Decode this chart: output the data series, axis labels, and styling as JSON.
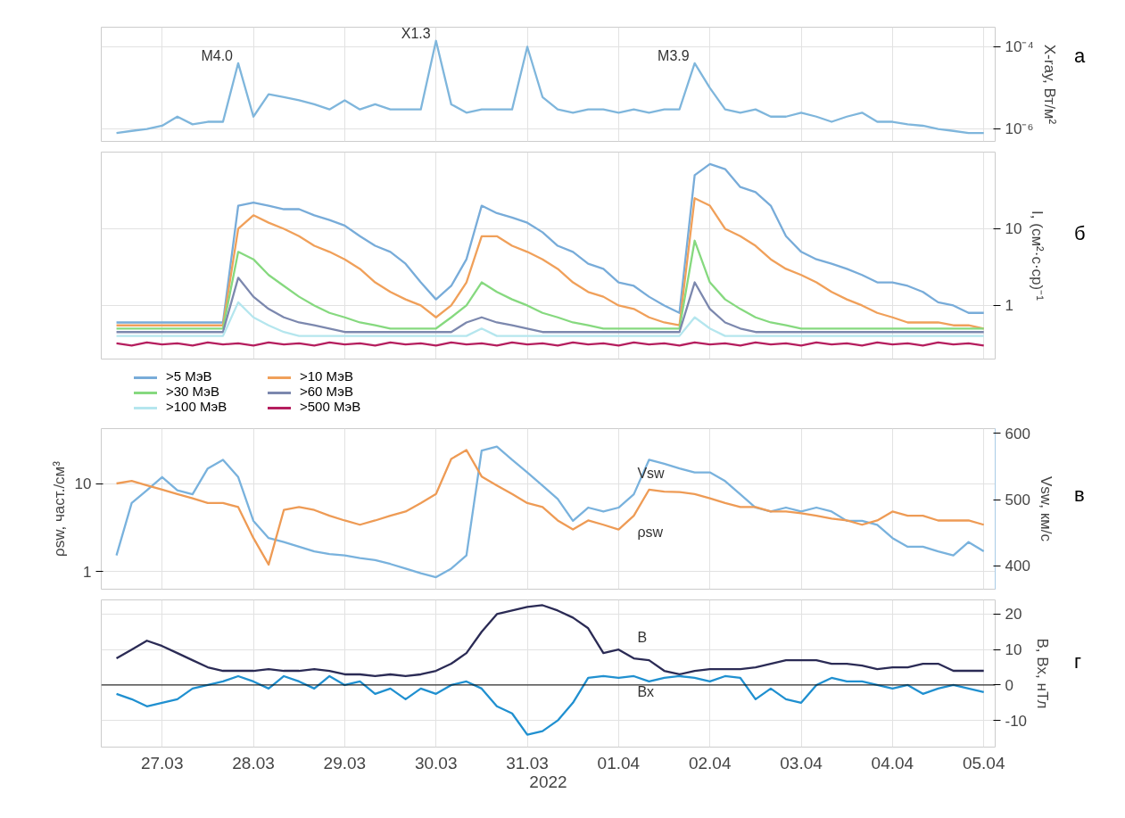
{
  "chart_data": [
    {
      "type": "line",
      "ylabel": "X-ray, Вт/м²",
      "log": true,
      "grid": true,
      "tick_labels": "y",
      "xlim": [
        "2022-03-26T20:00",
        "2022-04-05T15:00"
      ],
      "xticks": [
        "2022-03-27T12:00",
        "2022-03-28T12:00",
        "2022-03-29T12:00",
        "2022-03-30T12:00",
        "2022-03-31T12:00",
        "2022-04-01T12:00",
        "2022-04-02T12:00",
        "2022-04-03T12:00",
        "2022-04-04T12:00",
        "2022-04-05T12:00"
      ],
      "ylim": [
        5e-07,
        0.0003
      ],
      "yticks": [
        {
          "value": 1e-06,
          "label": "10⁻⁶"
        },
        {
          "value": 0.0001,
          "label": "10⁻⁴"
        }
      ],
      "x": [
        "2022-03-27T00:00",
        "2022-03-27T04:00",
        "2022-03-27T08:00",
        "2022-03-27T12:00",
        "2022-03-27T16:00",
        "2022-03-27T20:00",
        "2022-03-28T00:00",
        "2022-03-28T04:00",
        "2022-03-28T08:00",
        "2022-03-28T12:00",
        "2022-03-28T16:00",
        "2022-03-28T20:00",
        "2022-03-29T00:00",
        "2022-03-29T04:00",
        "2022-03-29T08:00",
        "2022-03-29T12:00",
        "2022-03-29T16:00",
        "2022-03-29T20:00",
        "2022-03-30T00:00",
        "2022-03-30T04:00",
        "2022-03-30T08:00",
        "2022-03-30T12:00",
        "2022-03-30T16:00",
        "2022-03-30T20:00",
        "2022-03-31T00:00",
        "2022-03-31T04:00",
        "2022-03-31T08:00",
        "2022-03-31T12:00",
        "2022-03-31T16:00",
        "2022-03-31T20:00",
        "2022-04-01T00:00",
        "2022-04-01T04:00",
        "2022-04-01T08:00",
        "2022-04-01T12:00",
        "2022-04-01T16:00",
        "2022-04-01T20:00",
        "2022-04-02T00:00",
        "2022-04-02T04:00",
        "2022-04-02T08:00",
        "2022-04-02T12:00",
        "2022-04-02T16:00",
        "2022-04-02T20:00",
        "2022-04-03T00:00",
        "2022-04-03T04:00",
        "2022-04-03T08:00",
        "2022-04-03T12:00",
        "2022-04-03T16:00",
        "2022-04-03T20:00",
        "2022-04-04T00:00",
        "2022-04-04T04:00",
        "2022-04-04T08:00",
        "2022-04-04T12:00",
        "2022-04-04T16:00",
        "2022-04-04T20:00",
        "2022-04-05T00:00",
        "2022-04-05T04:00",
        "2022-04-05T08:00",
        "2022-04-05T12:00"
      ],
      "series": [
        {
          "color": "#7fb6dc",
          "values": [
            8e-07,
            9e-07,
            1e-06,
            1.2e-06,
            2e-06,
            1.3e-06,
            1.5e-06,
            1.5e-06,
            4e-05,
            2e-06,
            7e-06,
            6e-06,
            5e-06,
            4e-06,
            3e-06,
            5e-06,
            3e-06,
            4e-06,
            3e-06,
            3e-06,
            3e-06,
            0.00014,
            4e-06,
            2.5e-06,
            3e-06,
            3e-06,
            3e-06,
            0.0001,
            6e-06,
            3e-06,
            2.5e-06,
            3e-06,
            3e-06,
            2.5e-06,
            3e-06,
            2.5e-06,
            3e-06,
            3e-06,
            4e-05,
            1e-05,
            3e-06,
            2.5e-06,
            3e-06,
            2e-06,
            2e-06,
            2.5e-06,
            2e-06,
            1.5e-06,
            2e-06,
            2.5e-06,
            1.5e-06,
            1.5e-06,
            1.3e-06,
            1.2e-06,
            1e-06,
            9e-07,
            8e-07,
            8e-07
          ]
        }
      ],
      "annotations": [
        {
          "text": "M4.0",
          "x": "2022-03-28T08:00",
          "y": 4e-05
        },
        {
          "text": "X1.3",
          "x": "2022-03-30T12:00",
          "y": 0.00014
        },
        {
          "text": "M3.9",
          "x": "2022-04-02T08:00",
          "y": 4e-05
        },
        "а"
      ]
    },
    {
      "type": "line",
      "ylabel": "I, (см²·с·ср)⁻¹",
      "log": true,
      "grid": true,
      "tick_labels": "y",
      "legend": "bottom",
      "xlim": [
        "2022-03-26T20:00",
        "2022-04-05T15:00"
      ],
      "xticks": [
        "2022-03-27T12:00",
        "2022-03-28T12:00",
        "2022-03-29T12:00",
        "2022-03-30T12:00",
        "2022-03-31T12:00",
        "2022-04-01T12:00",
        "2022-04-02T12:00",
        "2022-04-03T12:00",
        "2022-04-04T12:00",
        "2022-04-05T12:00"
      ],
      "ylim": [
        0.2,
        100
      ],
      "yticks": [
        1,
        10
      ],
      "x": [
        "2022-03-27T00:00",
        "2022-03-27T04:00",
        "2022-03-27T08:00",
        "2022-03-27T12:00",
        "2022-03-27T16:00",
        "2022-03-27T20:00",
        "2022-03-28T00:00",
        "2022-03-28T04:00",
        "2022-03-28T08:00",
        "2022-03-28T12:00",
        "2022-03-28T16:00",
        "2022-03-28T20:00",
        "2022-03-29T00:00",
        "2022-03-29T04:00",
        "2022-03-29T08:00",
        "2022-03-29T12:00",
        "2022-03-29T16:00",
        "2022-03-29T20:00",
        "2022-03-30T00:00",
        "2022-03-30T04:00",
        "2022-03-30T08:00",
        "2022-03-30T12:00",
        "2022-03-30T16:00",
        "2022-03-30T20:00",
        "2022-03-31T00:00",
        "2022-03-31T04:00",
        "2022-03-31T08:00",
        "2022-03-31T12:00",
        "2022-03-31T16:00",
        "2022-03-31T20:00",
        "2022-04-01T00:00",
        "2022-04-01T04:00",
        "2022-04-01T08:00",
        "2022-04-01T12:00",
        "2022-04-01T16:00",
        "2022-04-01T20:00",
        "2022-04-02T00:00",
        "2022-04-02T04:00",
        "2022-04-02T08:00",
        "2022-04-02T12:00",
        "2022-04-02T16:00",
        "2022-04-02T20:00",
        "2022-04-03T00:00",
        "2022-04-03T04:00",
        "2022-04-03T08:00",
        "2022-04-03T12:00",
        "2022-04-03T16:00",
        "2022-04-03T20:00",
        "2022-04-04T00:00",
        "2022-04-04T04:00",
        "2022-04-04T08:00",
        "2022-04-04T12:00",
        "2022-04-04T16:00",
        "2022-04-04T20:00",
        "2022-04-05T00:00",
        "2022-04-05T04:00",
        "2022-04-05T08:00",
        "2022-04-05T12:00"
      ],
      "series": [
        {
          "name": ">5 МэВ",
          "color": "#78acd9",
          "values": [
            0.6,
            0.6,
            0.6,
            0.6,
            0.6,
            0.6,
            0.6,
            0.6,
            20,
            22,
            20,
            18,
            18,
            15,
            13,
            11,
            8,
            6,
            5,
            3.5,
            2,
            1.2,
            1.8,
            4,
            20,
            16,
            14,
            12,
            9,
            6,
            5,
            3.5,
            3,
            2,
            1.8,
            1.3,
            1,
            0.8,
            50,
            70,
            60,
            35,
            30,
            20,
            8,
            5,
            4,
            3.5,
            3,
            2.5,
            2,
            2,
            1.8,
            1.5,
            1.1,
            1,
            0.8,
            0.8
          ]
        },
        {
          "name": ">10 МэВ",
          "color": "#f0a05a",
          "values": [
            0.55,
            0.55,
            0.55,
            0.55,
            0.55,
            0.55,
            0.55,
            0.55,
            10,
            15,
            12,
            10,
            8,
            6,
            5,
            4,
            3,
            2,
            1.5,
            1.2,
            1,
            0.7,
            1,
            2,
            8,
            8,
            6,
            5,
            4,
            3,
            2,
            1.5,
            1.3,
            1,
            0.9,
            0.7,
            0.6,
            0.55,
            25,
            20,
            10,
            8,
            6,
            4,
            3,
            2.5,
            2,
            1.5,
            1.2,
            1,
            0.8,
            0.7,
            0.6,
            0.6,
            0.6,
            0.55,
            0.55,
            0.5
          ]
        },
        {
          "name": ">30 МэВ",
          "color": "#86d97f",
          "values": [
            0.5,
            0.5,
            0.5,
            0.5,
            0.5,
            0.5,
            0.5,
            0.5,
            5,
            4,
            2.5,
            1.8,
            1.3,
            1,
            0.8,
            0.7,
            0.6,
            0.55,
            0.5,
            0.5,
            0.5,
            0.5,
            0.7,
            1,
            2,
            1.5,
            1.2,
            1,
            0.8,
            0.7,
            0.6,
            0.55,
            0.5,
            0.5,
            0.5,
            0.5,
            0.5,
            0.5,
            7,
            2,
            1.2,
            0.9,
            0.7,
            0.6,
            0.55,
            0.5,
            0.5,
            0.5,
            0.5,
            0.5,
            0.5,
            0.5,
            0.5,
            0.5,
            0.5,
            0.5,
            0.5,
            0.5
          ]
        },
        {
          "name": ">60 МэВ",
          "color": "#7c88ae",
          "values": [
            0.45,
            0.45,
            0.45,
            0.45,
            0.45,
            0.45,
            0.45,
            0.45,
            2.3,
            1.3,
            0.9,
            0.7,
            0.6,
            0.55,
            0.5,
            0.45,
            0.45,
            0.45,
            0.45,
            0.45,
            0.45,
            0.45,
            0.45,
            0.6,
            0.7,
            0.6,
            0.55,
            0.5,
            0.45,
            0.45,
            0.45,
            0.45,
            0.45,
            0.45,
            0.45,
            0.45,
            0.45,
            0.45,
            2,
            0.9,
            0.6,
            0.5,
            0.45,
            0.45,
            0.45,
            0.45,
            0.45,
            0.45,
            0.45,
            0.45,
            0.45,
            0.45,
            0.45,
            0.45,
            0.45,
            0.45,
            0.45,
            0.45
          ]
        },
        {
          "name": ">100 МэВ",
          "color": "#b5e6ee",
          "values": [
            0.4,
            0.4,
            0.4,
            0.4,
            0.4,
            0.4,
            0.4,
            0.4,
            1.1,
            0.7,
            0.55,
            0.45,
            0.4,
            0.4,
            0.4,
            0.4,
            0.4,
            0.4,
            0.4,
            0.4,
            0.4,
            0.4,
            0.4,
            0.4,
            0.5,
            0.4,
            0.4,
            0.4,
            0.4,
            0.4,
            0.4,
            0.4,
            0.4,
            0.4,
            0.4,
            0.4,
            0.4,
            0.4,
            0.7,
            0.5,
            0.4,
            0.4,
            0.4,
            0.4,
            0.4,
            0.4,
            0.4,
            0.4,
            0.4,
            0.4,
            0.4,
            0.4,
            0.4,
            0.4,
            0.4,
            0.4,
            0.4,
            0.4
          ]
        },
        {
          "name": ">500 МэВ",
          "color": "#b51e5e",
          "values": [
            0.32,
            0.3,
            0.33,
            0.31,
            0.32,
            0.3,
            0.33,
            0.31,
            0.32,
            0.3,
            0.33,
            0.31,
            0.32,
            0.3,
            0.33,
            0.31,
            0.32,
            0.3,
            0.33,
            0.31,
            0.32,
            0.3,
            0.33,
            0.31,
            0.32,
            0.3,
            0.33,
            0.31,
            0.32,
            0.3,
            0.33,
            0.31,
            0.32,
            0.3,
            0.33,
            0.31,
            0.32,
            0.3,
            0.33,
            0.31,
            0.32,
            0.3,
            0.33,
            0.31,
            0.32,
            0.3,
            0.33,
            0.31,
            0.32,
            0.3,
            0.33,
            0.31,
            0.32,
            0.3,
            0.33,
            0.31,
            0.32,
            0.3
          ]
        }
      ],
      "annotations": [
        "б"
      ]
    },
    {
      "type": "line",
      "ylabel": "ρsw, част./см³",
      "y2label": "Vsw, км/с",
      "log": "y",
      "grid": true,
      "tick_labels": "y",
      "xlim": [
        "2022-03-26T20:00",
        "2022-04-05T15:00"
      ],
      "xticks": [
        "2022-03-27T12:00",
        "2022-03-28T12:00",
        "2022-03-29T12:00",
        "2022-03-30T12:00",
        "2022-03-31T12:00",
        "2022-04-01T12:00",
        "2022-04-02T12:00",
        "2022-04-03T12:00",
        "2022-04-04T12:00",
        "2022-04-05T12:00"
      ],
      "ylim": [
        0.63,
        42
      ],
      "yticks": [
        1,
        10
      ],
      "y2lim": [
        365,
        607
      ],
      "y2ticks": [
        400,
        500,
        600
      ],
      "x": [
        "2022-03-27T00:00",
        "2022-03-27T04:00",
        "2022-03-27T08:00",
        "2022-03-27T12:00",
        "2022-03-27T16:00",
        "2022-03-27T20:00",
        "2022-03-28T00:00",
        "2022-03-28T04:00",
        "2022-03-28T08:00",
        "2022-03-28T12:00",
        "2022-03-28T16:00",
        "2022-03-28T20:00",
        "2022-03-29T00:00",
        "2022-03-29T04:00",
        "2022-03-29T08:00",
        "2022-03-29T12:00",
        "2022-03-29T16:00",
        "2022-03-29T20:00",
        "2022-03-30T00:00",
        "2022-03-30T04:00",
        "2022-03-30T08:00",
        "2022-03-30T12:00",
        "2022-03-30T16:00",
        "2022-03-30T20:00",
        "2022-03-31T00:00",
        "2022-03-31T04:00",
        "2022-03-31T08:00",
        "2022-03-31T12:00",
        "2022-03-31T16:00",
        "2022-03-31T20:00",
        "2022-04-01T00:00",
        "2022-04-01T04:00",
        "2022-04-01T08:00",
        "2022-04-01T12:00",
        "2022-04-01T16:00",
        "2022-04-01T20:00",
        "2022-04-02T00:00",
        "2022-04-02T04:00",
        "2022-04-02T08:00",
        "2022-04-02T12:00",
        "2022-04-02T16:00",
        "2022-04-02T20:00",
        "2022-04-03T00:00",
        "2022-04-03T04:00",
        "2022-04-03T08:00",
        "2022-04-03T12:00",
        "2022-04-03T16:00",
        "2022-04-03T20:00",
        "2022-04-04T00:00",
        "2022-04-04T04:00",
        "2022-04-04T08:00",
        "2022-04-04T12:00",
        "2022-04-04T16:00",
        "2022-04-04T20:00",
        "2022-04-05T00:00",
        "2022-04-05T04:00",
        "2022-04-05T08:00",
        "2022-04-05T12:00"
      ],
      "series": [
        {
          "name": "Vsw",
          "color": "#79b2dd",
          "axis": "y2",
          "values": [
            416,
            495,
            514,
            534,
            514,
            508,
            547,
            560,
            534,
            468,
            442,
            436,
            429,
            422,
            418,
            416,
            412,
            409,
            403,
            396,
            389,
            383,
            396,
            416,
            574,
            580,
            560,
            541,
            521,
            501,
            468,
            488,
            482,
            488,
            508,
            560,
            554,
            547,
            541,
            541,
            528,
            508,
            488,
            482,
            488,
            482,
            488,
            482,
            468,
            468,
            462,
            442,
            429,
            429,
            422,
            416,
            436,
            422
          ]
        },
        {
          "name": "ρsw",
          "color": "#ee9b55",
          "values": [
            10,
            10.7,
            9.5,
            8.5,
            7.6,
            6.8,
            6,
            6,
            5.4,
            2.4,
            1.2,
            5,
            5.4,
            5,
            4.3,
            3.8,
            3.4,
            3.8,
            4.3,
            4.8,
            6,
            7.6,
            19,
            24,
            12,
            9.5,
            7.6,
            6,
            5.4,
            3.8,
            3,
            3.8,
            3.4,
            3,
            4.3,
            8.5,
            8.1,
            8,
            7.6,
            6.8,
            6,
            5.4,
            5.4,
            4.8,
            4.8,
            4.6,
            4.3,
            4,
            3.8,
            3.4,
            3.8,
            4.8,
            4.3,
            4.3,
            3.8,
            3.8,
            3.8,
            3.4
          ]
        }
      ],
      "annotations": [
        "в"
      ]
    },
    {
      "type": "line",
      "ylabel": "B, Bx, нТл",
      "xlabel": "2022",
      "grid": true,
      "xlim": [
        "2022-03-26T20:00",
        "2022-04-05T15:00"
      ],
      "xticks": [
        {
          "value": "2022-03-27T12:00",
          "label": "27.03"
        },
        {
          "value": "2022-03-28T12:00",
          "label": "28.03"
        },
        {
          "value": "2022-03-29T12:00",
          "label": "29.03"
        },
        {
          "value": "2022-03-30T12:00",
          "label": "30.03"
        },
        {
          "value": "2022-03-31T12:00",
          "label": "31.03"
        },
        {
          "value": "2022-04-01T12:00",
          "label": "01.04"
        },
        {
          "value": "2022-04-02T12:00",
          "label": "02.04"
        },
        {
          "value": "2022-04-03T12:00",
          "label": "03.04"
        },
        {
          "value": "2022-04-04T12:00",
          "label": "04.04"
        },
        {
          "value": "2022-04-05T12:00",
          "label": "05.04"
        }
      ],
      "ylim": [
        -17.5,
        24
      ],
      "yticks": [
        -10,
        0,
        10,
        20
      ],
      "x": [
        "2022-03-27T00:00",
        "2022-03-27T04:00",
        "2022-03-27T08:00",
        "2022-03-27T12:00",
        "2022-03-27T16:00",
        "2022-03-27T20:00",
        "2022-03-28T00:00",
        "2022-03-28T04:00",
        "2022-03-28T08:00",
        "2022-03-28T12:00",
        "2022-03-28T16:00",
        "2022-03-28T20:00",
        "2022-03-29T00:00",
        "2022-03-29T04:00",
        "2022-03-29T08:00",
        "2022-03-29T12:00",
        "2022-03-29T16:00",
        "2022-03-29T20:00",
        "2022-03-30T00:00",
        "2022-03-30T04:00",
        "2022-03-30T08:00",
        "2022-03-30T12:00",
        "2022-03-30T16:00",
        "2022-03-30T20:00",
        "2022-03-31T00:00",
        "2022-03-31T04:00",
        "2022-03-31T08:00",
        "2022-03-31T12:00",
        "2022-03-31T16:00",
        "2022-03-31T20:00",
        "2022-04-01T00:00",
        "2022-04-01T04:00",
        "2022-04-01T08:00",
        "2022-04-01T12:00",
        "2022-04-01T16:00",
        "2022-04-01T20:00",
        "2022-04-02T00:00",
        "2022-04-02T04:00",
        "2022-04-02T08:00",
        "2022-04-02T12:00",
        "2022-04-02T16:00",
        "2022-04-02T20:00",
        "2022-04-03T00:00",
        "2022-04-03T04:00",
        "2022-04-03T08:00",
        "2022-04-03T12:00",
        "2022-04-03T16:00",
        "2022-04-03T20:00",
        "2022-04-04T00:00",
        "2022-04-04T04:00",
        "2022-04-04T08:00",
        "2022-04-04T12:00",
        "2022-04-04T16:00",
        "2022-04-04T20:00",
        "2022-04-05T00:00",
        "2022-04-05T04:00",
        "2022-04-05T08:00",
        "2022-04-05T12:00"
      ],
      "series": [
        {
          "name": "B",
          "color": "#2b2b55",
          "values": [
            7.5,
            10,
            12.5,
            11,
            9,
            7,
            5,
            4,
            4,
            4,
            4.5,
            4,
            4,
            4.5,
            4,
            3,
            3,
            2.5,
            3,
            2.5,
            3,
            4,
            6,
            9,
            15,
            20,
            21,
            22,
            22.5,
            21,
            19,
            16,
            9,
            10,
            7.5,
            7,
            4,
            3,
            4,
            4.5,
            4.5,
            4.5,
            5,
            6,
            7,
            7,
            7,
            6,
            6,
            5.5,
            4.5,
            5,
            5,
            6,
            6,
            4,
            4,
            4
          ]
        },
        {
          "name": "Bx",
          "color": "#2090d0",
          "values": [
            -2.5,
            -4,
            -6,
            -5,
            -4,
            -1,
            0,
            1,
            2.5,
            1,
            -1,
            2.5,
            1,
            -1,
            2.5,
            0,
            1,
            -2.5,
            -1,
            -4,
            -1,
            -2.5,
            0,
            1,
            -1,
            -6,
            -8,
            -14,
            -13,
            -10,
            -5,
            2,
            2.5,
            2,
            2.5,
            1,
            2,
            2.5,
            2,
            1,
            2.5,
            2,
            -4,
            -1,
            -4,
            -5,
            0,
            2,
            1,
            1,
            0,
            -1,
            0,
            -2.5,
            -1,
            0,
            -1,
            -2
          ]
        }
      ],
      "ref_lines": [
        {
          "axis": "y",
          "value": 0,
          "color": "#000000"
        }
      ],
      "annotations": [
        "г"
      ]
    }
  ]
}
